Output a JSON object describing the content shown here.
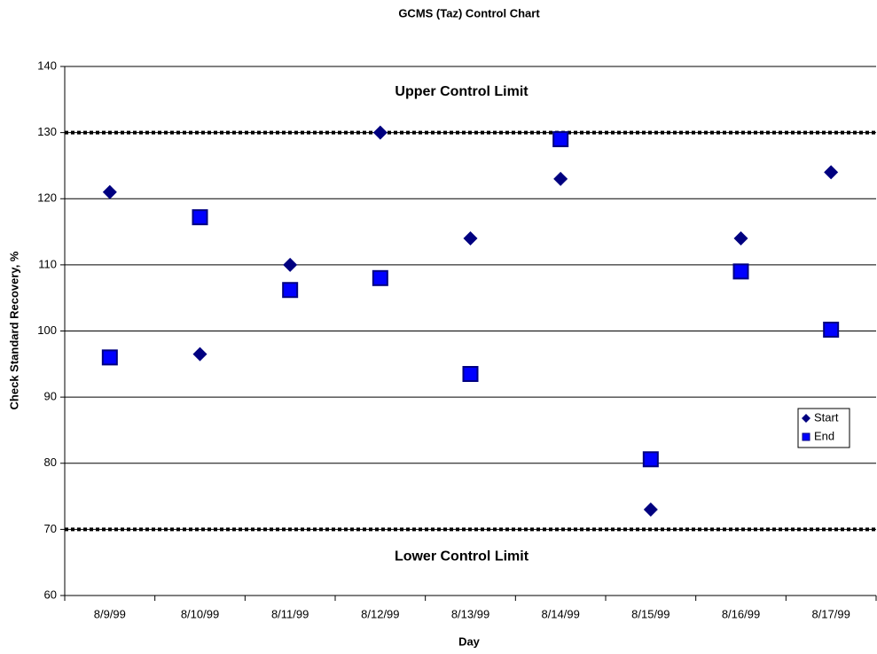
{
  "chart_data": {
    "type": "scatter",
    "title": "GCMS (Taz) Control Chart",
    "x_label": "Day",
    "y_label": "Check Standard Recovery, %",
    "categories": [
      "8/9/99",
      "8/10/99",
      "8/11/99",
      "8/12/99",
      "8/13/99",
      "8/14/99",
      "8/15/99",
      "8/16/99",
      "8/17/99"
    ],
    "series": [
      {
        "name": "Start",
        "color": "#000080",
        "marker": "diamond",
        "values": [
          121,
          96.5,
          110,
          130,
          114,
          123,
          73,
          114,
          124
        ]
      },
      {
        "name": "End",
        "color": "#0000ff",
        "marker": "square",
        "values": [
          96,
          117.2,
          106.2,
          108,
          93.5,
          129,
          80.6,
          109,
          100.2
        ]
      }
    ],
    "control_limits": [
      {
        "label": "Upper Control Limit",
        "value": 130
      },
      {
        "label": "Lower Control Limit",
        "value": 70
      }
    ],
    "ylim": [
      60,
      140
    ],
    "yticks": [
      60,
      70,
      80,
      90,
      100,
      110,
      120,
      130,
      140
    ],
    "grid": true,
    "legend": "right"
  }
}
